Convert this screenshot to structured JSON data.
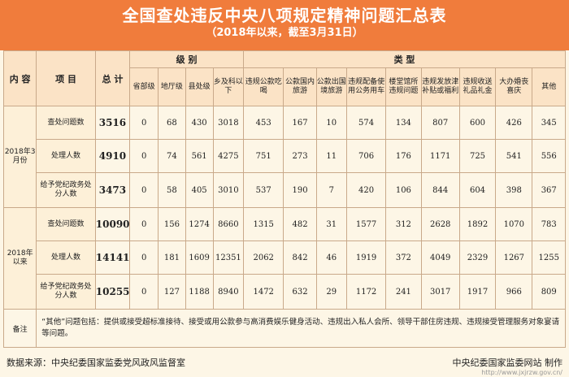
{
  "header": {
    "title": "全国查处违反中央八项规定精神问题汇总表",
    "subtitle": "（2018年以来，截至3月31日）"
  },
  "table": {
    "corner_label": "内 容",
    "item_label": "项 目",
    "total_label": "总 计",
    "level_group": "级 别",
    "type_group": "类 型",
    "level_cols": [
      "省部级",
      "地厅级",
      "县处级",
      "乡及科以下"
    ],
    "type_cols": [
      "违规公款吃喝",
      "公款国内旅游",
      "公款出国境旅游",
      "违规配备使用公务用车",
      "楼堂馆所违规问题",
      "违规发放津补贴或福利",
      "违规收送礼品礼金",
      "大办婚丧喜庆",
      "其他"
    ],
    "groups": [
      {
        "name": "2018年3月份",
        "rows": [
          {
            "item": "查处问题数",
            "total": "3516",
            "levels": [
              "0",
              "68",
              "430",
              "3018"
            ],
            "types": [
              "453",
              "167",
              "10",
              "574",
              "134",
              "807",
              "600",
              "426",
              "345"
            ]
          },
          {
            "item": "处理人数",
            "total": "4910",
            "levels": [
              "0",
              "74",
              "561",
              "4275"
            ],
            "types": [
              "751",
              "273",
              "11",
              "706",
              "176",
              "1171",
              "725",
              "541",
              "556"
            ]
          },
          {
            "item": "给予党纪政务处分人数",
            "total": "3473",
            "levels": [
              "0",
              "58",
              "405",
              "3010"
            ],
            "types": [
              "537",
              "190",
              "7",
              "420",
              "106",
              "844",
              "604",
              "398",
              "367"
            ]
          }
        ]
      },
      {
        "name": "2018年以来",
        "rows": [
          {
            "item": "查处问题数",
            "total": "10090",
            "levels": [
              "0",
              "156",
              "1274",
              "8660"
            ],
            "types": [
              "1315",
              "482",
              "31",
              "1577",
              "312",
              "2628",
              "1892",
              "1070",
              "783"
            ]
          },
          {
            "item": "处理人数",
            "total": "14141",
            "levels": [
              "0",
              "181",
              "1609",
              "12351"
            ],
            "types": [
              "2062",
              "842",
              "46",
              "1919",
              "372",
              "4049",
              "2329",
              "1267",
              "1255"
            ]
          },
          {
            "item": "给予党纪政务处分人数",
            "total": "10255",
            "levels": [
              "0",
              "127",
              "1188",
              "8940"
            ],
            "types": [
              "1472",
              "632",
              "29",
              "1172",
              "241",
              "3017",
              "1917",
              "966",
              "809"
            ]
          }
        ]
      }
    ],
    "remark_label": "备注",
    "remark_text": "“其他”问题包括：提供或接受超标准接待、接受或用公款参与高消费娱乐健身活动、违规出入私人会所、领导干部住房违规、违规接受管理服务对象宴请等问题。"
  },
  "footer": {
    "source": "数据来源：中央纪委国家监委党风政风监督室",
    "producer": "中央纪委国家监委网站  制作",
    "watermark": "http://www.jxjrzw.gov.cn/"
  }
}
